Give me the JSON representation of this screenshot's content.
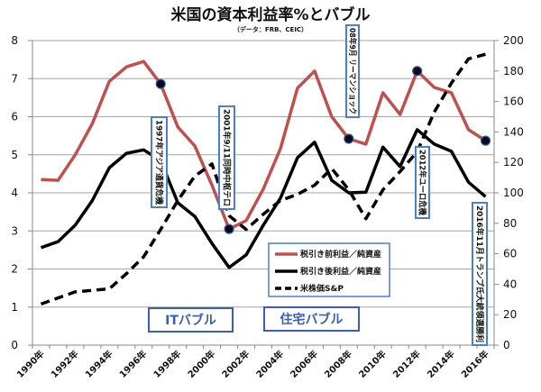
{
  "chart_data": {
    "type": "line",
    "title": "米国の資本利益率%とバブル",
    "subtitle": "（データ：FRB、CEIC）",
    "xlabel": "",
    "ylabel": "",
    "ylim": [
      0,
      8
    ],
    "y2lim": [
      0,
      200
    ],
    "yticks": [
      "0",
      "1",
      "2",
      "3",
      "4",
      "5",
      "6",
      "7",
      "8"
    ],
    "y2ticks": [
      "0",
      "20",
      "40",
      "60",
      "80",
      "100",
      "120",
      "140",
      "160",
      "180",
      "200"
    ],
    "grid": true,
    "legend_position": "center-bottom",
    "categories": [
      "1990年",
      "1991年",
      "1992年",
      "1993年",
      "1994年",
      "1995年",
      "1996年",
      "1997年",
      "1998年",
      "1999年",
      "2000年",
      "2001年",
      "2002年",
      "2003年",
      "2004年",
      "2005年",
      "2006年",
      "2007年",
      "2008年",
      "2009年",
      "2010年",
      "2011年",
      "2012年",
      "2013年",
      "2014年",
      "2015年",
      "2016年"
    ],
    "xtick_labels": [
      "1990年",
      "1992年",
      "1994年",
      "1996年",
      "1998年",
      "2000年",
      "2002年",
      "2004年",
      "2006年",
      "2008年",
      "2010年",
      "2012年",
      "2014年",
      "2016年"
    ],
    "series": [
      {
        "name": "税引き前利益／純資産",
        "axis": "left",
        "color": "#c0504d",
        "style": "solid",
        "values": [
          4.35,
          4.33,
          5.0,
          5.82,
          6.93,
          7.31,
          7.45,
          6.86,
          5.73,
          5.23,
          4.2,
          3.05,
          3.27,
          4.1,
          5.16,
          6.75,
          7.2,
          6.0,
          5.42,
          5.28,
          6.63,
          6.06,
          7.2,
          6.77,
          6.63,
          5.66,
          5.37
        ]
      },
      {
        "name": "税引き後利益／純資産",
        "axis": "left",
        "color": "#000000",
        "style": "solid",
        "values": [
          2.56,
          2.72,
          3.15,
          3.8,
          4.66,
          5.04,
          5.13,
          4.85,
          3.74,
          3.38,
          2.67,
          2.04,
          2.37,
          3.15,
          3.86,
          4.92,
          5.33,
          4.33,
          4.0,
          4.02,
          5.2,
          4.69,
          5.66,
          5.28,
          5.09,
          4.28,
          3.9
        ]
      },
      {
        "name": "米株価S&P",
        "axis": "right",
        "color": "#000000",
        "style": "dashed",
        "values": [
          27,
          31,
          35,
          36,
          37,
          47,
          58,
          76,
          95,
          111,
          119,
          85,
          76,
          86,
          95,
          99,
          105,
          116,
          102,
          83,
          102,
          114,
          127,
          153,
          172,
          188,
          191
        ]
      }
    ],
    "markers": [
      {
        "series": 0,
        "index": 7
      },
      {
        "series": 0,
        "index": 11
      },
      {
        "series": 0,
        "index": 18
      },
      {
        "series": 0,
        "index": 22
      },
      {
        "series": 0,
        "index": 26
      }
    ],
    "annotations": [
      {
        "text": "1997年アジア通貨危機"
      },
      {
        "text": "2001年9/11同時中枢テロ"
      },
      {
        "text": "08年9月 リーマンショック"
      },
      {
        "text": "2012年ユーロ危機"
      },
      {
        "text": "2016年11月トランプ氏大統領選勝利"
      }
    ],
    "bubbles": [
      {
        "text": "ITバブル"
      },
      {
        "text": "住宅バブル"
      }
    ]
  }
}
